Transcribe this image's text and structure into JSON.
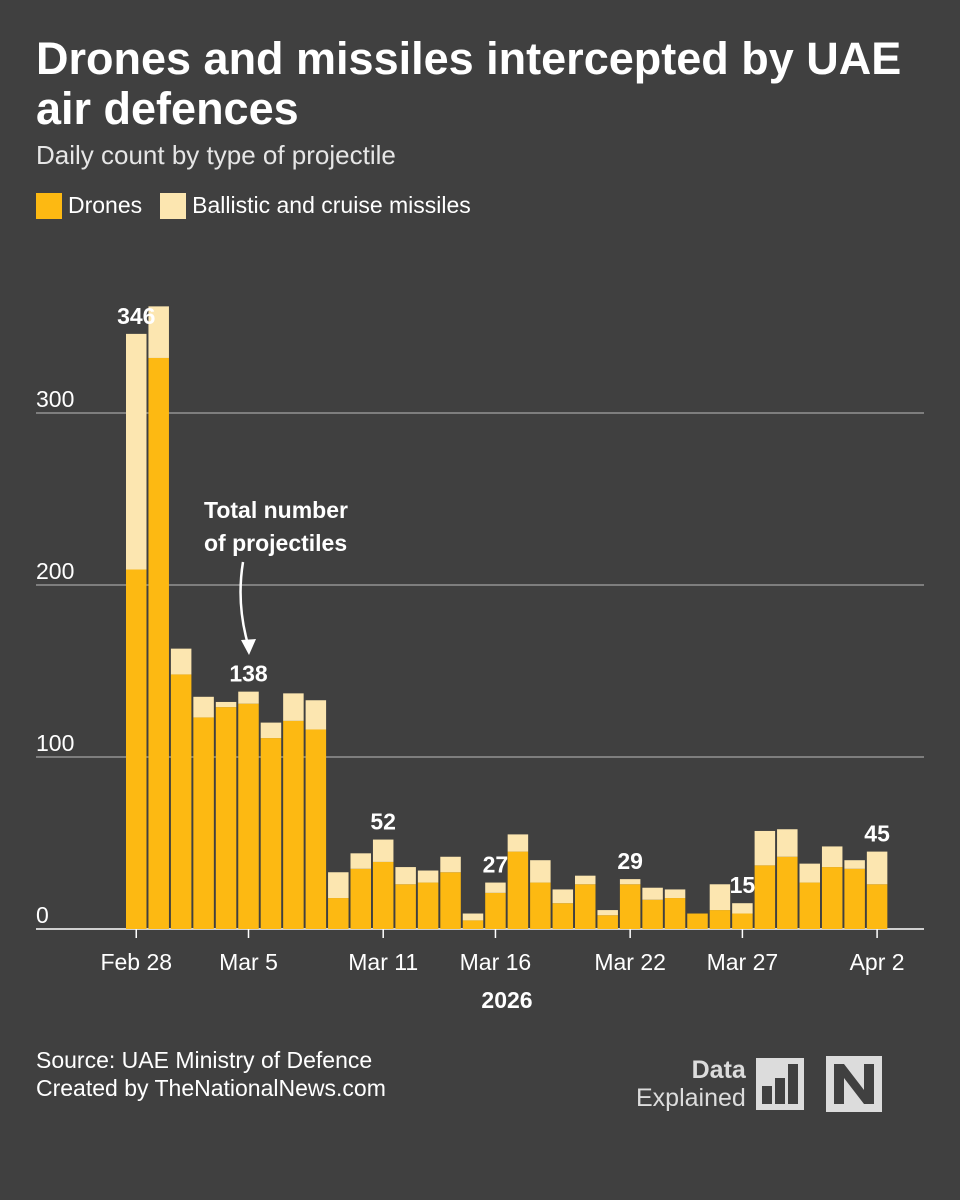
{
  "header": {
    "title": "Drones and missiles intercepted by UAE air defences",
    "subtitle": "Daily count by type of projectile"
  },
  "legend": {
    "items": [
      {
        "label": "Drones",
        "color": "#FDB912"
      },
      {
        "label": "Ballistic and cruise missiles",
        "color": "#FCE6B0"
      }
    ]
  },
  "annotation": {
    "text_line1": "Total number",
    "text_line2": "of projectiles"
  },
  "footer": {
    "source": "Source: UAE Ministry of Defence",
    "credit": "Created by TheNationalNews.com"
  },
  "brand": {
    "line1": "Data",
    "line2": "Explained",
    "logo_icon": "bar-chart-icon",
    "mark_icon": "the-national-n-icon"
  },
  "chart_data": {
    "type": "bar",
    "stacked": true,
    "xlabel": "2026",
    "ylabel": "",
    "ylim": [
      0,
      360
    ],
    "yticks": [
      0,
      100,
      200,
      300
    ],
    "grid": true,
    "categories": [
      "Feb 28",
      "Mar 1",
      "Mar 2",
      "Mar 3",
      "Mar 4",
      "Mar 5",
      "Mar 6",
      "Mar 7",
      "Mar 8",
      "Mar 9",
      "Mar 10",
      "Mar 11",
      "Mar 12",
      "Mar 13",
      "Mar 14",
      "Mar 15",
      "Mar 16",
      "Mar 17",
      "Mar 18",
      "Mar 19",
      "Mar 20",
      "Mar 21",
      "Mar 22",
      "Mar 23",
      "Mar 24",
      "Mar 25",
      "Mar 26",
      "Mar 27",
      "Mar 28",
      "Mar 29",
      "Mar 30",
      "Mar 31",
      "Apr 1",
      "Apr 2"
    ],
    "xtick_labels": [
      {
        "index": 0,
        "label": "Feb 28"
      },
      {
        "index": 5,
        "label": "Mar 5"
      },
      {
        "index": 11,
        "label": "Mar 11"
      },
      {
        "index": 16,
        "label": "Mar 16"
      },
      {
        "index": 22,
        "label": "Mar 22"
      },
      {
        "index": 27,
        "label": "Mar 27"
      },
      {
        "index": 33,
        "label": "Apr 2"
      }
    ],
    "series": [
      {
        "name": "Drones",
        "color": "#FDB912",
        "values": [
          209,
          332,
          148,
          123,
          129,
          131,
          111,
          121,
          116,
          18,
          35,
          39,
          26,
          27,
          33,
          5,
          21,
          45,
          27,
          15,
          26,
          8,
          26,
          17,
          18,
          9,
          11,
          9,
          37,
          42,
          27,
          36,
          35,
          26
        ]
      },
      {
        "name": "Ballistic and cruise missiles",
        "color": "#FCE6B0",
        "values": [
          137,
          30,
          15,
          12,
          3,
          7,
          9,
          16,
          17,
          15,
          9,
          13,
          10,
          7,
          9,
          4,
          6,
          10,
          13,
          8,
          5,
          3,
          3,
          7,
          5,
          0,
          15,
          6,
          20,
          16,
          11,
          12,
          5,
          19
        ]
      }
    ],
    "data_labels": [
      {
        "index": 0,
        "label": "346"
      },
      {
        "index": 5,
        "label": "138"
      },
      {
        "index": 11,
        "label": "52"
      },
      {
        "index": 16,
        "label": "27"
      },
      {
        "index": 22,
        "label": "29"
      },
      {
        "index": 27,
        "label": "15"
      },
      {
        "index": 33,
        "label": "45"
      }
    ]
  }
}
